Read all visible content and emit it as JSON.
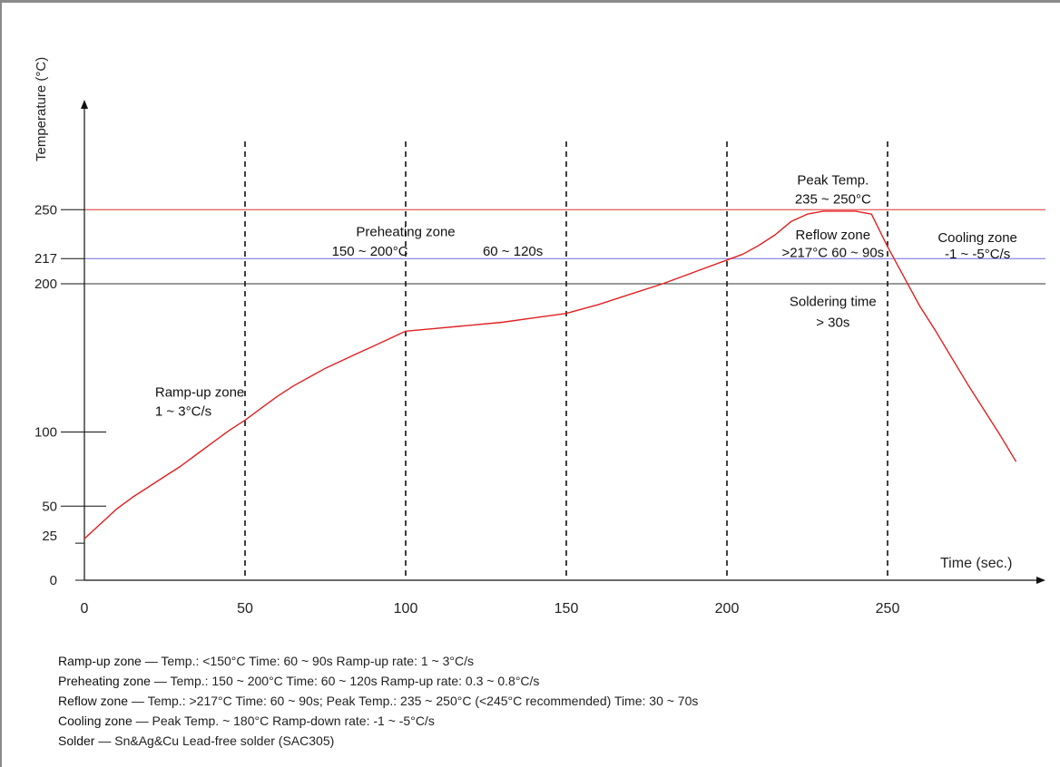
{
  "chart_data": {
    "type": "line",
    "ylabel": "Temperature (°C)",
    "xlabel": "Time (sec.)",
    "xlim": [
      0,
      290
    ],
    "ylim": [
      0,
      280
    ],
    "x_ticks": [
      0,
      50,
      100,
      150,
      200,
      250
    ],
    "y_ticks": [
      {
        "value": 0,
        "label": "0"
      },
      {
        "value": 25,
        "label": "25"
      },
      {
        "value": 50,
        "label": "50"
      },
      {
        "value": 100,
        "label": "100"
      },
      {
        "value": 200,
        "label": "200"
      },
      {
        "value": 217,
        "label": "217"
      },
      {
        "value": 250,
        "label": "250"
      }
    ],
    "reference_lines": [
      {
        "value": 250,
        "color": "#e03030"
      },
      {
        "value": 217,
        "color": "#6f6fe0"
      },
      {
        "value": 200,
        "color": "#333333"
      }
    ],
    "zone_boundaries": [
      50,
      100,
      150,
      200,
      250
    ],
    "series": [
      {
        "color": "#e02020",
        "x": [
          0,
          5,
          10,
          15,
          20,
          25,
          30,
          35,
          40,
          45,
          50,
          55,
          60,
          65,
          70,
          75,
          80,
          85,
          90,
          95,
          100,
          110,
          120,
          130,
          140,
          150,
          160,
          170,
          180,
          190,
          200,
          205,
          210,
          215,
          220,
          225,
          230,
          235,
          240,
          245,
          250,
          255,
          260,
          265,
          270,
          275,
          280,
          285,
          290
        ],
        "y": [
          28,
          38,
          48,
          56,
          63,
          70,
          77,
          85,
          93,
          101,
          108,
          116,
          124,
          131,
          137,
          143,
          148,
          153,
          158,
          163,
          168,
          170,
          172,
          174,
          177,
          180,
          186,
          193,
          200,
          208,
          216,
          220,
          226,
          233,
          242,
          247,
          249,
          249,
          249,
          247,
          225,
          205,
          185,
          168,
          150,
          132,
          115,
          98,
          80
        ]
      }
    ],
    "annotations": [
      {
        "x": 22,
        "y": 124,
        "text": "Ramp-up zone"
      },
      {
        "x": 22,
        "y": 111,
        "text": "1 ~ 3°C/s"
      },
      {
        "x": 100,
        "y": 232,
        "text": "Preheating zone"
      },
      {
        "x": 77,
        "y": 219,
        "text": "150 ~ 200°C"
      },
      {
        "x": 124,
        "y": 219,
        "text": "60 ~ 120s"
      },
      {
        "x": 233,
        "y": 267,
        "text": "Peak Temp."
      },
      {
        "x": 233,
        "y": 254,
        "text": "235 ~ 250°C"
      },
      {
        "x": 233,
        "y": 230,
        "text": "Reflow zone"
      },
      {
        "x": 233,
        "y": 218,
        "text": ">217°C  60 ~ 90s"
      },
      {
        "x": 278,
        "y": 228,
        "text": "Cooling zone"
      },
      {
        "x": 278,
        "y": 217,
        "text": "-1 ~ -5°C/s"
      },
      {
        "x": 233,
        "y": 185,
        "text": "Soldering time"
      },
      {
        "x": 233,
        "y": 171,
        "text": "> 30s"
      }
    ]
  },
  "notes": [
    {
      "name": "Ramp-up zone",
      "text": " — Temp.: <150°C  Time: 60 ~ 90s  Ramp-up rate: 1 ~ 3°C/s"
    },
    {
      "name": "Preheating zone",
      "text": " — Temp.: 150 ~ 200°C  Time: 60 ~ 120s  Ramp-up rate: 0.3 ~ 0.8°C/s"
    },
    {
      "name": "Reflow zone",
      "text": " — Temp.: >217°C  Time: 60 ~ 90s; Peak Temp.: 235 ~ 250°C (<245°C recommended)  Time: 30 ~ 70s"
    },
    {
      "name": "Cooling zone",
      "text": " — Peak Temp. ~ 180°C  Ramp-down rate: -1 ~ -5°C/s"
    },
    {
      "name": "Solder",
      "text": " — Sn&Ag&Cu Lead-free solder (SAC305)"
    }
  ]
}
